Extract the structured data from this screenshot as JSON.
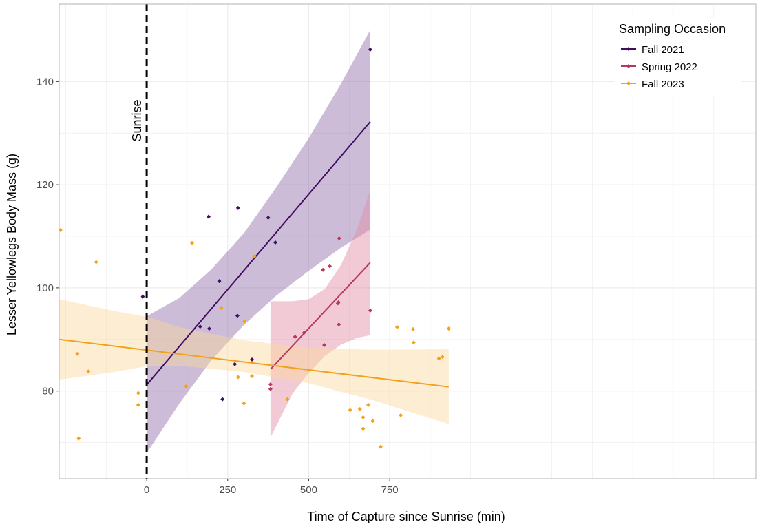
{
  "chart_data": {
    "type": "scatter",
    "xlabel": "Time of Capture since Sunrise (min)",
    "ylabel": "Lesser Yellowlegs Body Mass (g)",
    "xlim": [
      -270,
      1880
    ],
    "ylim": [
      63,
      155
    ],
    "x_ticks": [
      0,
      250,
      500,
      750
    ],
    "y_ticks": [
      80,
      100,
      120,
      140
    ],
    "grid": true,
    "legend": {
      "title": "Sampling Occasion",
      "position": "top-right"
    },
    "annotations": [
      {
        "type": "vline",
        "x": 0,
        "label": "Sunrise",
        "style": "dashed"
      }
    ],
    "series": [
      {
        "name": "Fall 2021",
        "color": "#3f0c5f",
        "band_color": "#8f6aa8",
        "points": [
          [
            -12,
            98.3
          ],
          [
            165,
            92.5
          ],
          [
            191,
            113.8
          ],
          [
            193,
            92.1
          ],
          [
            224,
            101.3
          ],
          [
            234,
            78.4
          ],
          [
            272,
            85.2
          ],
          [
            280,
            94.6
          ],
          [
            282,
            115.5
          ],
          [
            325,
            86.1
          ],
          [
            375,
            113.6
          ],
          [
            397,
            108.8
          ],
          [
            690,
            146.2
          ]
        ],
        "fit": {
          "x": [
            0,
            690
          ],
          "y": [
            81.2,
            132.2
          ]
        },
        "ci": {
          "x": [
            0,
            100,
            200,
            300,
            400,
            500,
            600,
            690
          ],
          "lower": [
            68.0,
            77.5,
            86.0,
            92.8,
            98.5,
            103.3,
            107.8,
            111.3
          ],
          "upper": [
            94.5,
            98.0,
            103.6,
            110.6,
            119.5,
            129.0,
            139.6,
            150.0
          ]
        }
      },
      {
        "name": "Spring 2022",
        "color": "#b5375a",
        "band_color": "#e28aa3",
        "points": [
          [
            382,
            81.3
          ],
          [
            382,
            80.4
          ],
          [
            458,
            90.5
          ],
          [
            486,
            91.3
          ],
          [
            544,
            103.5
          ],
          [
            548,
            88.9
          ],
          [
            565,
            104.2
          ],
          [
            590,
            97.0
          ],
          [
            592,
            97.2
          ],
          [
            593,
            92.9
          ],
          [
            594,
            109.6
          ],
          [
            690,
            95.6
          ]
        ],
        "fit": {
          "x": [
            382,
            690
          ],
          "y": [
            84.2,
            104.9
          ]
        },
        "ci": {
          "x": [
            382,
            450,
            500,
            550,
            600,
            650,
            690
          ],
          "lower": [
            71.0,
            79.5,
            83.5,
            86.8,
            89.0,
            90.3,
            90.8
          ],
          "upper": [
            97.4,
            97.4,
            97.8,
            99.8,
            104.5,
            111.5,
            119.0
          ]
        }
      },
      {
        "name": "Fall 2023",
        "color": "#f0a21a",
        "band_color": "#fbd79b",
        "points": [
          [
            -266,
            111.2
          ],
          [
            -156,
            105.0
          ],
          [
            -214,
            87.2
          ],
          [
            -210,
            70.8
          ],
          [
            -180,
            83.8
          ],
          [
            -26,
            79.6
          ],
          [
            -26,
            77.3
          ],
          [
            122,
            80.9
          ],
          [
            140,
            108.7
          ],
          [
            230,
            96.1
          ],
          [
            282,
            82.7
          ],
          [
            300,
            77.6
          ],
          [
            302,
            93.5
          ],
          [
            325,
            82.9
          ],
          [
            332,
            106.1
          ],
          [
            434,
            78.4
          ],
          [
            628,
            76.3
          ],
          [
            658,
            76.5
          ],
          [
            668,
            74.9
          ],
          [
            668,
            72.7
          ],
          [
            684,
            77.3
          ],
          [
            698,
            74.2
          ],
          [
            722,
            69.2
          ],
          [
            773,
            92.4
          ],
          [
            784,
            75.3
          ],
          [
            822,
            92.0
          ],
          [
            824,
            89.4
          ],
          [
            902,
            86.3
          ],
          [
            913,
            86.6
          ],
          [
            932,
            92.1
          ]
        ],
        "fit": {
          "x": [
            -270,
            932
          ],
          "y": [
            90.0,
            80.8
          ]
        },
        "ci": {
          "x": [
            -270,
            -100,
            0,
            100,
            300,
            500,
            700,
            932
          ],
          "lower": [
            82.2,
            83.7,
            84.8,
            84.9,
            83.7,
            81.5,
            78.2,
            73.6
          ],
          "upper": [
            97.8,
            95.5,
            94.4,
            92.4,
            89.8,
            88.4,
            88.0,
            88.1
          ]
        }
      }
    ]
  }
}
